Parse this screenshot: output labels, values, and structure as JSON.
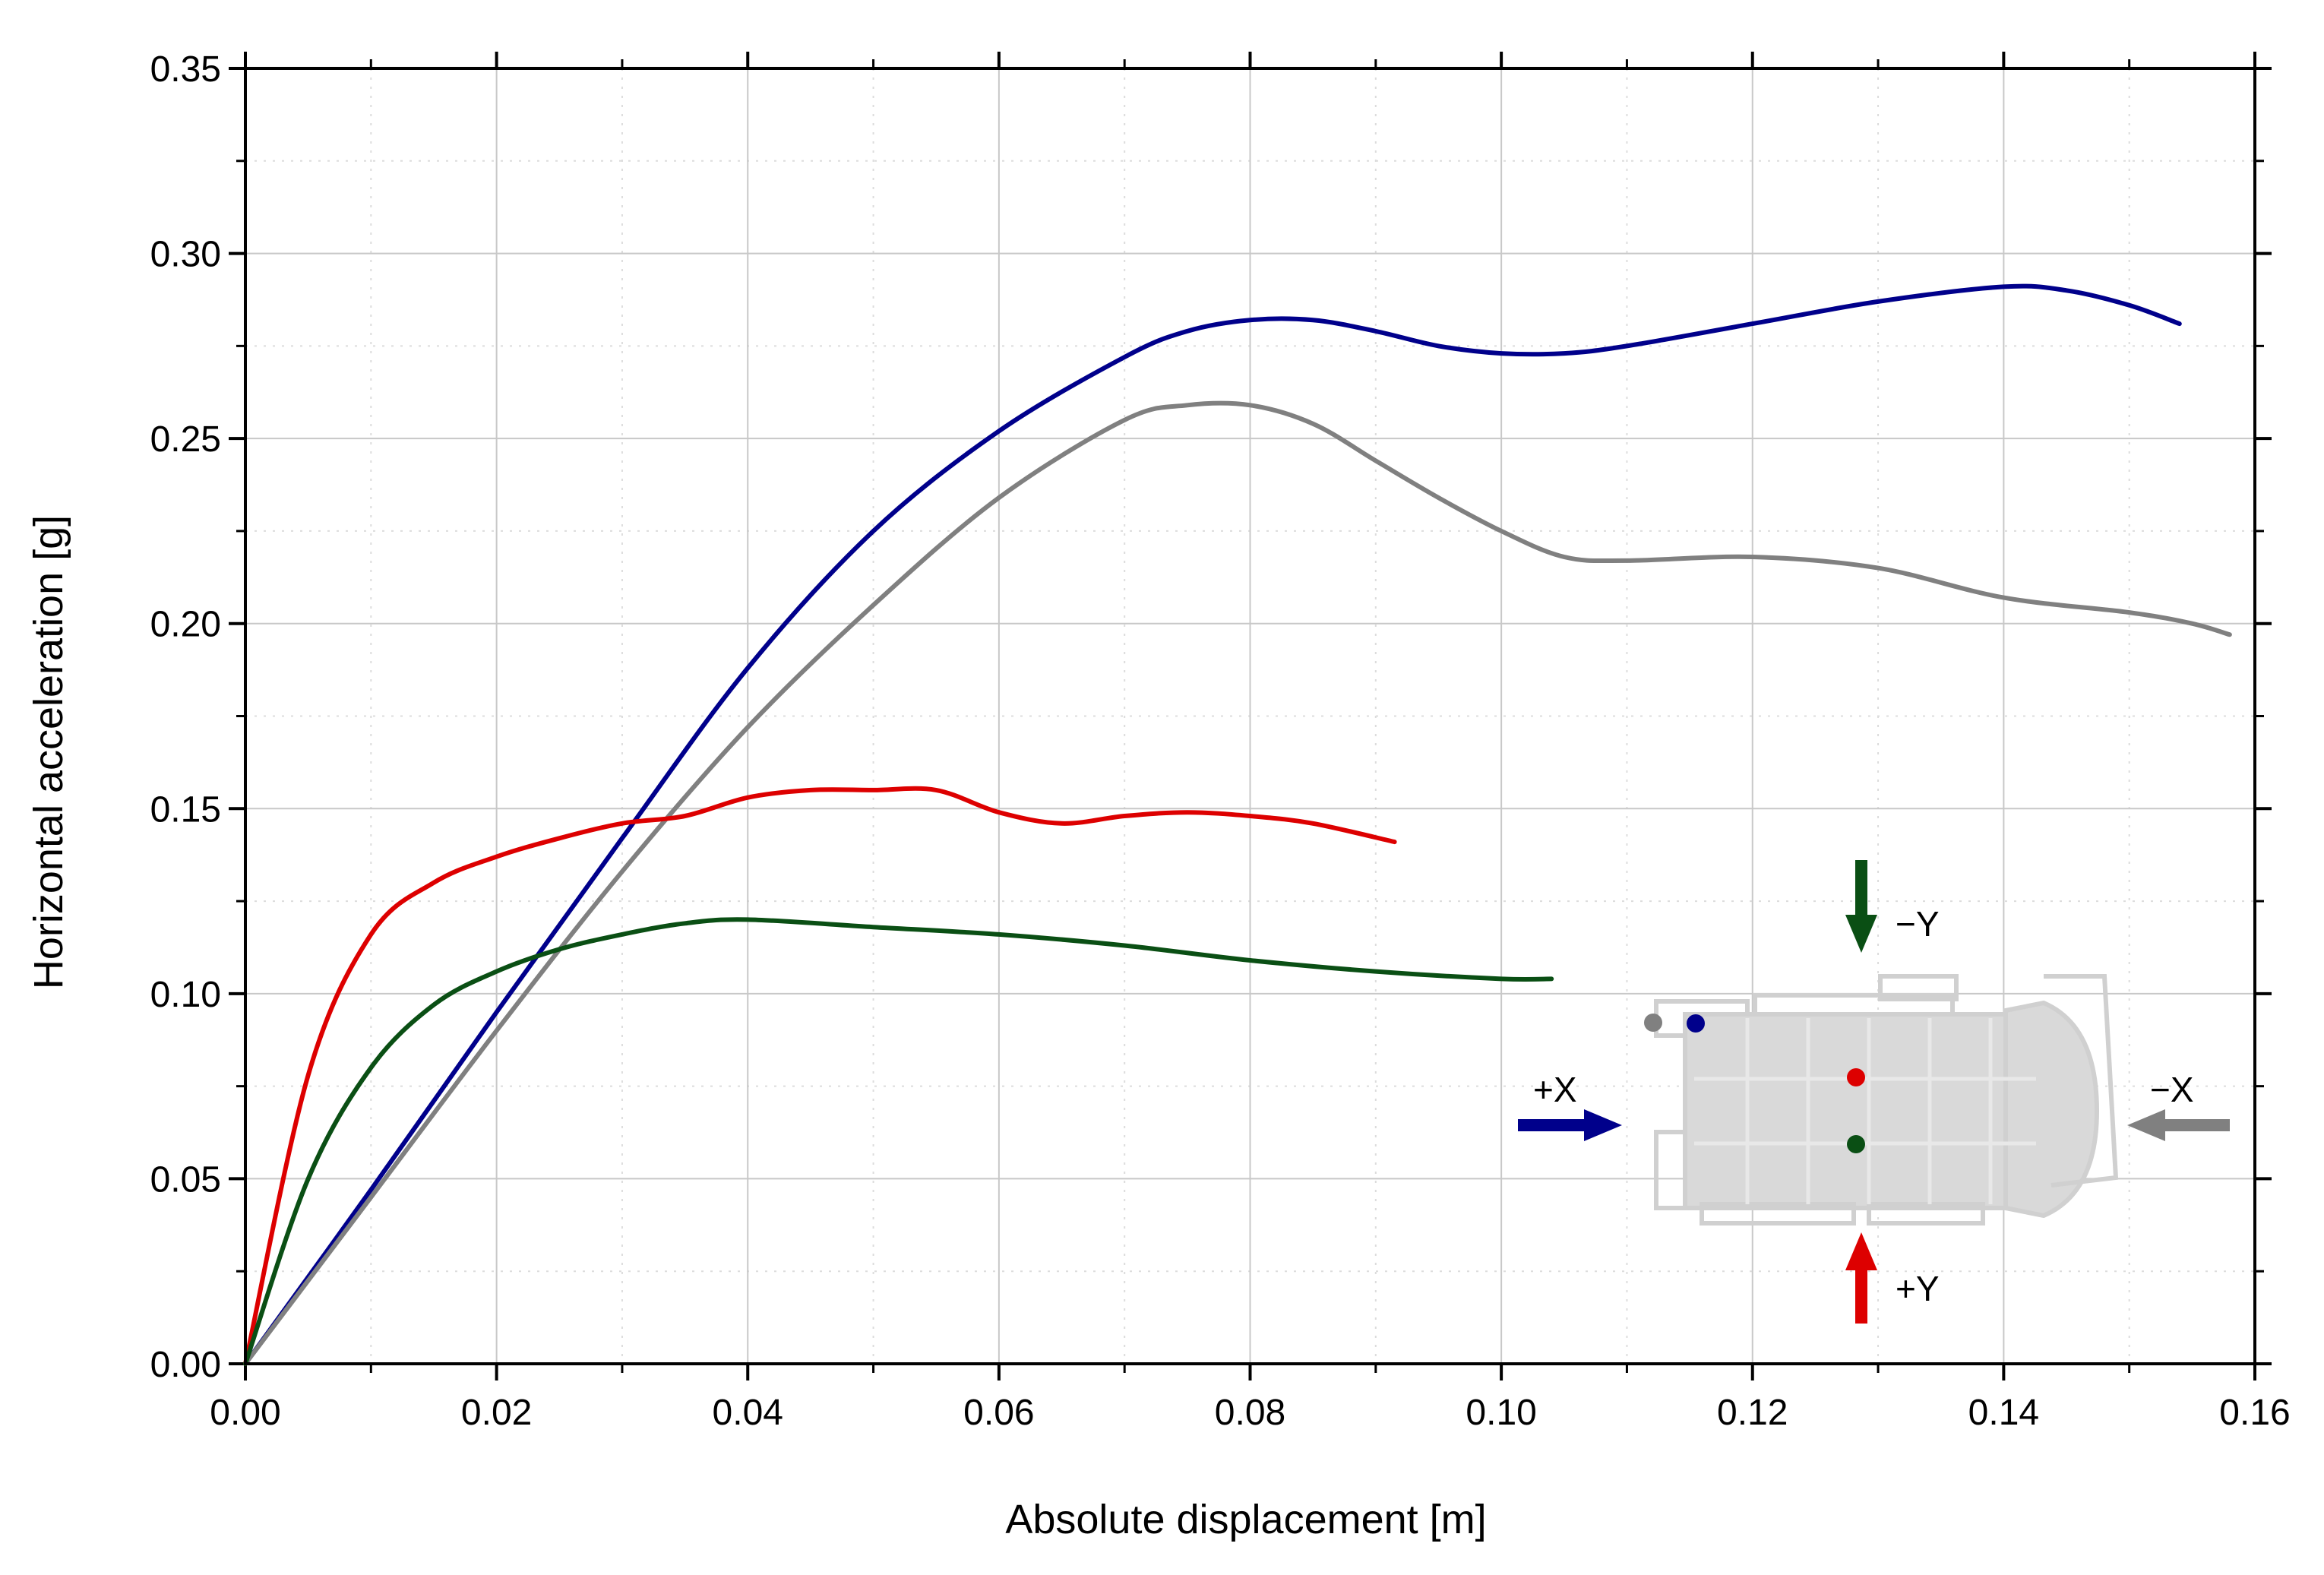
{
  "chart_data": {
    "type": "line",
    "xlabel": "Absolute displacement [m]",
    "ylabel": "Horizontal acceleration [g]",
    "xlim": [
      0.0,
      0.16
    ],
    "ylim": [
      0.0,
      0.35
    ],
    "x_ticks": [
      "0.00",
      "0.02",
      "0.04",
      "0.06",
      "0.08",
      "0.10",
      "0.12",
      "0.14",
      "0.16"
    ],
    "y_ticks": [
      "0.00",
      "0.05",
      "0.10",
      "0.15",
      "0.20",
      "0.25",
      "0.30",
      "0.35"
    ],
    "grid": true,
    "series": [
      {
        "color": "#00008b",
        "direction": "+X",
        "x": [
          0,
          0.01,
          0.02,
          0.03,
          0.04,
          0.05,
          0.06,
          0.07,
          0.075,
          0.08,
          0.085,
          0.09,
          0.095,
          0.1,
          0.105,
          0.11,
          0.12,
          0.13,
          0.14,
          0.145,
          0.15,
          0.154
        ],
        "y": [
          0,
          0.047,
          0.095,
          0.142,
          0.188,
          0.225,
          0.252,
          0.272,
          0.279,
          0.282,
          0.282,
          0.279,
          0.275,
          0.273,
          0.273,
          0.275,
          0.281,
          0.287,
          0.291,
          0.29,
          0.286,
          0.281
        ]
      },
      {
        "color": "#808080",
        "direction": "−X",
        "x": [
          0,
          0.01,
          0.02,
          0.03,
          0.04,
          0.05,
          0.06,
          0.07,
          0.075,
          0.08,
          0.085,
          0.09,
          0.095,
          0.1,
          0.105,
          0.11,
          0.12,
          0.13,
          0.14,
          0.15,
          0.155,
          0.158
        ],
        "y": [
          0,
          0.045,
          0.09,
          0.133,
          0.172,
          0.205,
          0.234,
          0.255,
          0.259,
          0.259,
          0.254,
          0.244,
          0.234,
          0.225,
          0.218,
          0.217,
          0.218,
          0.215,
          0.207,
          0.203,
          0.2,
          0.197
        ]
      },
      {
        "color": "#dd0000",
        "direction": "+Y",
        "x": [
          0,
          0.005,
          0.01,
          0.015,
          0.02,
          0.025,
          0.03,
          0.035,
          0.04,
          0.045,
          0.05,
          0.055,
          0.06,
          0.065,
          0.07,
          0.075,
          0.08,
          0.085,
          0.0915
        ],
        "y": [
          0,
          0.078,
          0.116,
          0.13,
          0.137,
          0.142,
          0.146,
          0.148,
          0.153,
          0.155,
          0.155,
          0.155,
          0.149,
          0.146,
          0.148,
          0.149,
          0.148,
          0.146,
          0.141
        ]
      },
      {
        "color": "#0a4f14",
        "direction": "−Y",
        "x": [
          0,
          0.005,
          0.01,
          0.015,
          0.02,
          0.025,
          0.03,
          0.035,
          0.04,
          0.05,
          0.06,
          0.07,
          0.08,
          0.09,
          0.1,
          0.104
        ],
        "y": [
          0,
          0.05,
          0.08,
          0.097,
          0.106,
          0.112,
          0.116,
          0.119,
          0.12,
          0.118,
          0.116,
          0.113,
          0.109,
          0.106,
          0.104,
          0.104
        ]
      }
    ],
    "inset": {
      "arrows": [
        {
          "label": "+X",
          "color": "#00008b"
        },
        {
          "label": "−X",
          "color": "#808080"
        },
        {
          "label": "+Y",
          "color": "#dd0000"
        },
        {
          "label": "−Y",
          "color": "#0a4f14"
        }
      ],
      "markers": [
        {
          "color": "#808080"
        },
        {
          "color": "#00008b"
        },
        {
          "color": "#dd0000"
        },
        {
          "color": "#0a4f14"
        }
      ]
    }
  }
}
